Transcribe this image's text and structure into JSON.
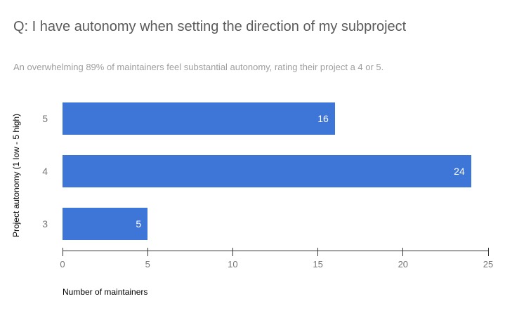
{
  "chart_data": {
    "type": "bar",
    "orientation": "horizontal",
    "title": "Q: I have autonomy when setting the direction of my subproject",
    "subtitle": "An overwhelming 89% of maintainers feel substantial autonomy, rating their project a 4 or 5.",
    "categories": [
      "5",
      "4",
      "3"
    ],
    "values": [
      16,
      24,
      5
    ],
    "xlabel": "Number of maintainers",
    "ylabel": "Project autonomy (1 low - 5 high)",
    "xlim": [
      0,
      25
    ],
    "xticks": [
      0,
      5,
      10,
      15,
      20,
      25
    ],
    "bar_color": "#3E76D8",
    "value_label_color": "#ffffff",
    "legend_position": "none",
    "grid": false
  }
}
